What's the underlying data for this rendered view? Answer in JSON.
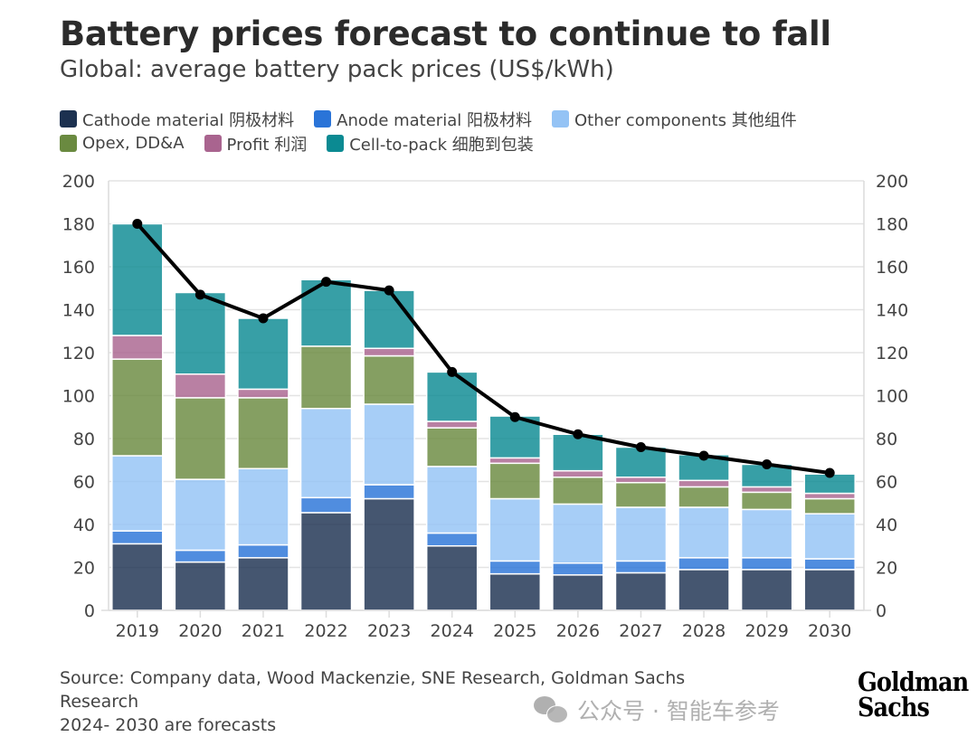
{
  "header": {
    "title": "Battery prices forecast to continue to fall",
    "subtitle": "Global: average battery pack prices (US$/kWh)"
  },
  "footer": {
    "source_line1": "Source: Company data, Wood Mackenzie, SNE Research, Goldman Sachs",
    "source_line2": "Research",
    "note": "2024- 2030 are forecasts",
    "logo_text": "Goldman Sachs",
    "watermark": "公众号 · 智能车参考"
  },
  "chart_data": {
    "type": "bar",
    "stacked": true,
    "title": "Battery prices forecast to continue to fall",
    "subtitle": "Global: average battery pack prices (US$/kWh)",
    "categories": [
      "2019",
      "2020",
      "2021",
      "2022",
      "2023",
      "2024",
      "2025",
      "2026",
      "2027",
      "2028",
      "2029",
      "2030"
    ],
    "ylim": [
      0,
      200
    ],
    "yticks": [
      0,
      20,
      40,
      60,
      80,
      100,
      120,
      140,
      160,
      180,
      200
    ],
    "grid": true,
    "dual_axis_labels": true,
    "legend_position": "top",
    "series": [
      {
        "name": "Cathode material 阴极材料",
        "color": "#1c3150",
        "values": [
          31,
          22.5,
          24.5,
          45.5,
          52,
          30,
          17,
          16.5,
          17.5,
          19,
          19,
          19
        ]
      },
      {
        "name": "Anode material 阳极材料",
        "color": "#2a74d8",
        "values": [
          6,
          5.5,
          6,
          7,
          6.5,
          6,
          6,
          5.5,
          5.5,
          5.5,
          5.5,
          5
        ]
      },
      {
        "name": "Other components 其他组件",
        "color": "#94c3f5",
        "values": [
          35,
          33,
          35.5,
          41.5,
          37.5,
          31,
          29,
          27.5,
          25,
          23.5,
          22.5,
          21
        ]
      },
      {
        "name": "Opex, DD&A",
        "color": "#6a8a40",
        "values": [
          45,
          38,
          33,
          29,
          22.5,
          18,
          16.5,
          12.5,
          11.5,
          9.5,
          8,
          7
        ]
      },
      {
        "name": "Profit 利润",
        "color": "#a9648f",
        "values": [
          11,
          11,
          4,
          0,
          3.5,
          3,
          2.5,
          3,
          2.5,
          3,
          2.5,
          2.5
        ]
      },
      {
        "name": "Cell-to-pack 细胞到包装",
        "color": "#0b8a92",
        "values": [
          52,
          38,
          33,
          31,
          27,
          23,
          19.5,
          17,
          14,
          12,
          10.5,
          9
        ]
      }
    ],
    "line": {
      "color": "#000000",
      "values": [
        180,
        147,
        136,
        153,
        149,
        111,
        90,
        82,
        76,
        72,
        68,
        64
      ]
    }
  }
}
